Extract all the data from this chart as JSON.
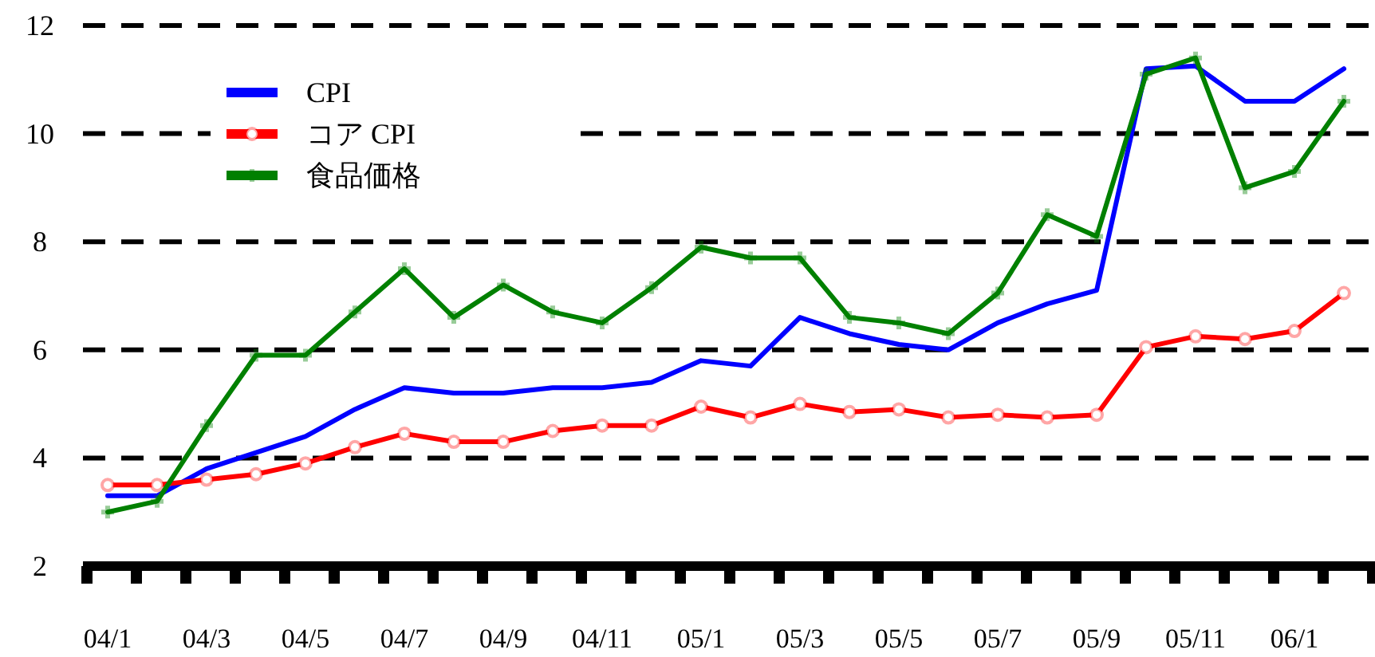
{
  "chart_data": {
    "type": "line",
    "categories": [
      "04/1",
      null,
      "04/3",
      null,
      "04/5",
      null,
      "04/7",
      null,
      "04/9",
      null,
      "04/11",
      null,
      "05/1",
      null,
      "05/3",
      null,
      "05/5",
      null,
      "05/7",
      null,
      "05/9",
      null,
      "05/11",
      null,
      "06/1",
      null
    ],
    "series": [
      {
        "name": "CPI",
        "color": "#0000ff",
        "marker": "none",
        "values": [
          3.3,
          3.3,
          3.8,
          4.1,
          4.4,
          4.9,
          5.3,
          5.2,
          5.2,
          5.3,
          5.3,
          5.4,
          5.8,
          5.7,
          6.6,
          6.3,
          6.1,
          6.0,
          6.5,
          6.85,
          7.1,
          11.2,
          11.25,
          10.6,
          10.6,
          11.2
        ]
      },
      {
        "name": "コア CPI",
        "color": "#ff0000",
        "marker": "circle",
        "values": [
          3.5,
          3.5,
          3.6,
          3.7,
          3.9,
          4.2,
          4.45,
          4.3,
          4.3,
          4.5,
          4.6,
          4.6,
          4.95,
          4.75,
          5.0,
          4.85,
          4.9,
          4.75,
          4.8,
          4.75,
          4.8,
          6.05,
          6.25,
          6.2,
          6.35,
          7.05
        ]
      },
      {
        "name": "食品価格",
        "color": "#008000",
        "marker": "cross",
        "values": [
          3.0,
          3.2,
          4.6,
          5.9,
          5.9,
          6.7,
          7.5,
          6.6,
          7.2,
          6.7,
          6.5,
          7.15,
          7.9,
          7.7,
          7.7,
          6.6,
          6.5,
          6.3,
          7.05,
          8.5,
          8.1,
          11.1,
          11.4,
          9.0,
          9.3,
          10.6
        ]
      }
    ],
    "ylim": [
      2,
      12
    ],
    "yticks": [
      2,
      4,
      6,
      8,
      10,
      12
    ],
    "grid": "y",
    "legend": "top left",
    "line_style": "solid"
  }
}
